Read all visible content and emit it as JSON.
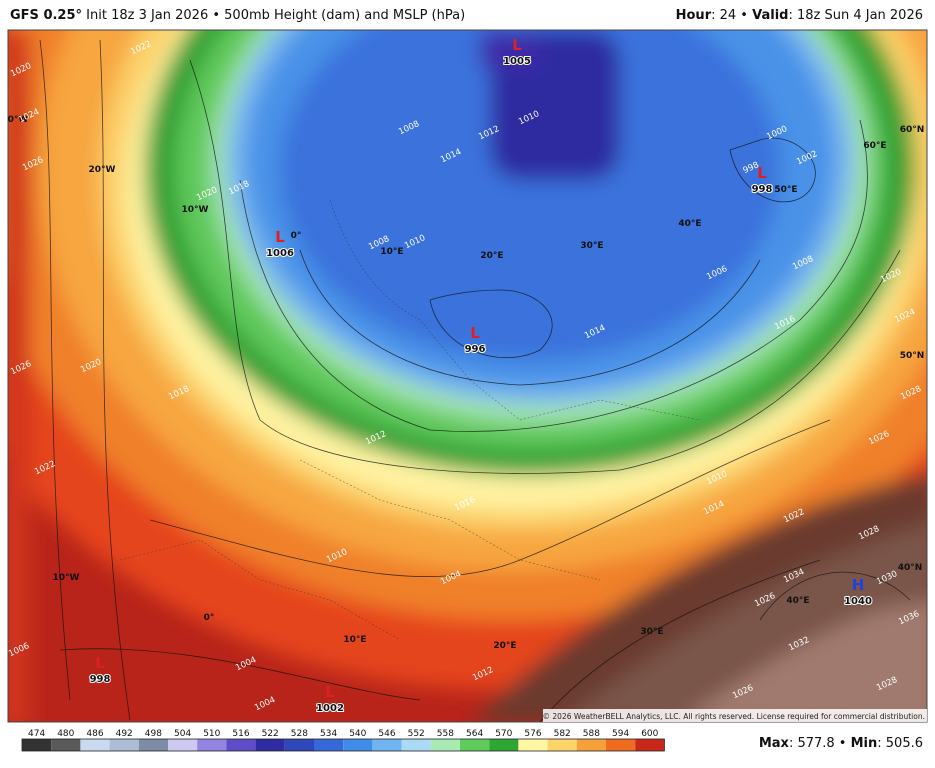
{
  "header": {
    "model": "GFS 0.25°",
    "description": "Init 18z 3 Jan 2026 • 500mb Height (dam) and MSLP (hPa)",
    "hour_label": "Hour",
    "hour_value": ": 24 • ",
    "valid_label": "Valid",
    "valid_value": ": 18z Sun 4 Jan 2026"
  },
  "map": {
    "centers": [
      {
        "letter": "L",
        "value": "1005",
        "color": "#e02020"
      },
      {
        "letter": "L",
        "value": "1006",
        "color": "#e02020"
      },
      {
        "letter": "L",
        "value": "996",
        "color": "#e02020"
      },
      {
        "letter": "L",
        "value": "998",
        "color": "#e02020"
      },
      {
        "letter": "L",
        "value": "998",
        "color": "#e02020"
      },
      {
        "letter": "L",
        "value": "1002",
        "color": "#e02020"
      },
      {
        "letter": "H",
        "value": "1040",
        "color": "#2040e0"
      }
    ],
    "grid_labels": [
      "20°W",
      "10°W",
      "0°W",
      "0°",
      "10°E",
      "20°E",
      "30°E",
      "40°E",
      "50°E",
      "60°E",
      "60°N",
      "50°N",
      "40°N",
      "10°W",
      "0°",
      "10°E",
      "20°E",
      "30°E",
      "40°E"
    ],
    "isobar_labels": [
      "1022",
      "1020",
      "1024",
      "1026",
      "1020",
      "1018",
      "1022",
      "1008",
      "1026",
      "1020",
      "1008",
      "1010",
      "1014",
      "1012",
      "1010",
      "1000",
      "1002",
      "998",
      "1006",
      "1008",
      "1016",
      "1020",
      "1024",
      "1028",
      "1026",
      "1022",
      "1014",
      "1010",
      "1012",
      "1016",
      "1010",
      "1004",
      "1004",
      "1006",
      "1028",
      "1034",
      "1030",
      "1036",
      "1026",
      "1032",
      "1026",
      "1028",
      "1012",
      "1004",
      "1014",
      "1018"
    ],
    "copyright": "© 2026 WeatherBELL Analytics, LLC. All rights reserved. License required for commercial distribution."
  },
  "legend": {
    "ticks": [
      474,
      480,
      486,
      492,
      498,
      504,
      510,
      516,
      522,
      528,
      534,
      540,
      546,
      552,
      558,
      564,
      570,
      576,
      582,
      588,
      594,
      600
    ],
    "colors": [
      "#333333",
      "#595959",
      "#c9d9ef",
      "#aebdd6",
      "#7f8ca6",
      "#cccaf2",
      "#9384e2",
      "#5e4cc9",
      "#2f2ba0",
      "#2f47ba",
      "#3668d8",
      "#408de9",
      "#72b3f1",
      "#abdaf5",
      "#a9eab4",
      "#5fcb5c",
      "#2ea634",
      "#fff6a4",
      "#fbd46a",
      "#f5a03a",
      "#ee6b1f",
      "#c8281a"
    ]
  },
  "footer": {
    "max_label": "Max",
    "max_value": ": 577.8 • ",
    "min_label": "Min",
    "min_value": ": 505.6"
  }
}
